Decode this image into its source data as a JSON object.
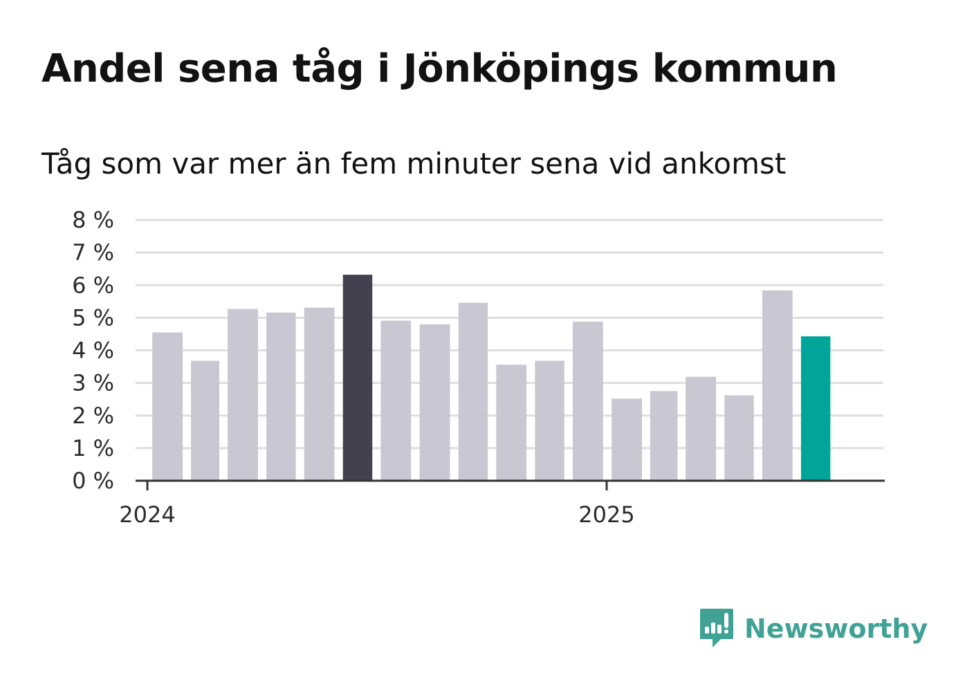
{
  "chart_data": {
    "type": "bar",
    "title": "Andel sena tåg i Jönköpings kommun",
    "subtitle": "Tåg som var mer än fem minuter sena vid ankomst",
    "values": [
      4.55,
      3.68,
      5.27,
      5.16,
      5.31,
      6.32,
      4.91,
      4.8,
      5.46,
      3.56,
      3.68,
      4.88,
      2.52,
      2.75,
      3.19,
      2.62,
      5.84,
      4.43
    ],
    "highlight": {
      "max_index": 5,
      "latest_index": 17
    },
    "ylim": [
      0,
      8
    ],
    "yticks": [
      "0 %",
      "1 %",
      "2 %",
      "3 %",
      "4 %",
      "5 %",
      "6 %",
      "7 %",
      "8 %"
    ],
    "xticks": [
      "2024",
      "2025"
    ],
    "grid": true,
    "colors": {
      "bar": "#c9c8d2",
      "max": "#42414d",
      "latest": "#00a59a",
      "grid": "#dedede",
      "axis": "#333333"
    }
  },
  "brand": {
    "name": "Newsworthy",
    "color": "#3fa295",
    "icon": "newsworthy-logo-icon"
  }
}
